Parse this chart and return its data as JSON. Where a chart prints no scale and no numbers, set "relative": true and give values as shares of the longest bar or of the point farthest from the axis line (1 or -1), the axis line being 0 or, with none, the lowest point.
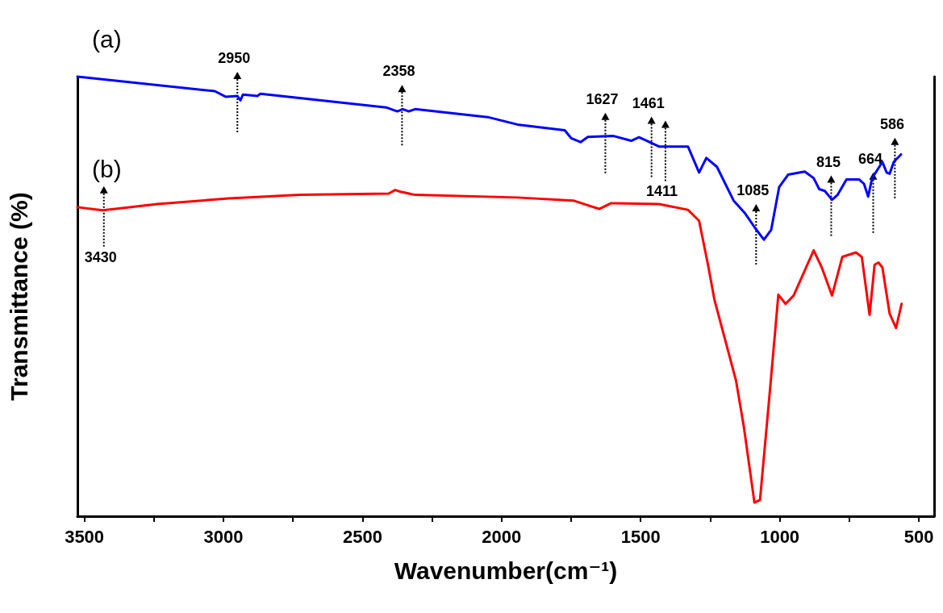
{
  "chart_data": {
    "type": "line",
    "relative": true,
    "xlabel": "Wavenumber(cm⁻¹)",
    "ylabel": "Transmittance (%)",
    "xlim": [
      3525,
      445
    ],
    "xticks": [
      3500,
      {
        "value": 3250,
        "label": null
      },
      3000,
      {
        "value": 2750,
        "label": null
      },
      2500,
      {
        "value": 2250,
        "label": null
      },
      2000,
      {
        "value": 1750,
        "label": null
      },
      1500,
      {
        "value": 1250,
        "label": null
      },
      1000,
      {
        "value": 750,
        "label": null
      },
      500
    ],
    "grid": false,
    "legend": false,
    "marker": "none",
    "line_style": "solid",
    "series": [
      {
        "name": "(a)",
        "color": "#0000ff",
        "x": [
          3525,
          3031,
          2991,
          2950,
          2939,
          2930,
          2878,
          2867,
          2415,
          2375,
          2355,
          2334,
          2311,
          2050,
          1943,
          1773,
          1750,
          1716,
          1690,
          1598,
          1534,
          1506,
          1434,
          1330,
          1290,
          1264,
          1226,
          1166,
          1126,
          1088,
          1057,
          1031,
          1002,
          970,
          910,
          878,
          858,
          838,
          812,
          792,
          760,
          714,
          697,
          682,
          668,
          642,
          631,
          616,
          605,
          590,
          564
        ],
        "values": [
          1.0,
          0.967,
          0.954,
          0.956,
          0.946,
          0.959,
          0.956,
          0.961,
          0.93,
          0.921,
          0.926,
          0.921,
          0.926,
          0.908,
          0.891,
          0.878,
          0.86,
          0.851,
          0.863,
          0.865,
          0.854,
          0.862,
          0.841,
          0.841,
          0.782,
          0.815,
          0.795,
          0.718,
          0.69,
          0.655,
          0.629,
          0.651,
          0.749,
          0.777,
          0.784,
          0.769,
          0.744,
          0.74,
          0.72,
          0.731,
          0.766,
          0.766,
          0.756,
          0.727,
          0.769,
          0.795,
          0.806,
          0.782,
          0.779,
          0.806,
          0.823
        ]
      },
      {
        "name": "(b)",
        "color": "#ff0000",
        "x": [
          3525,
          3434,
          3238,
          2982,
          2723,
          2406,
          2383,
          2363,
          2311,
          1943,
          1742,
          1649,
          1606,
          1434,
          1330,
          1290,
          1258,
          1235,
          1157,
          1129,
          1091,
          1071,
          1034,
          1005,
          979,
          950,
          878,
          849,
          812,
          775,
          726,
          705,
          677,
          659,
          645,
          631,
          605,
          582,
          562
        ],
        "values": [
          0.703,
          0.696,
          0.71,
          0.723,
          0.731,
          0.734,
          0.742,
          0.738,
          0.731,
          0.725,
          0.718,
          0.699,
          0.712,
          0.71,
          0.697,
          0.672,
          0.572,
          0.493,
          0.308,
          0.203,
          0.031,
          0.037,
          0.295,
          0.504,
          0.483,
          0.502,
          0.605,
          0.566,
          0.502,
          0.59,
          0.6,
          0.59,
          0.458,
          0.572,
          0.577,
          0.566,
          0.461,
          0.428,
          0.483
        ]
      }
    ],
    "annotations": [
      {
        "text": "3430",
        "x": 3430,
        "y": 0.696
      },
      {
        "text": "2950",
        "x": 2950,
        "y": 0.956
      },
      {
        "text": "2358",
        "x": 2358,
        "y": 0.926
      },
      {
        "text": "1627",
        "x": 1627,
        "y": 0.863
      },
      {
        "text": "1461",
        "x": 1461,
        "y": 0.854
      },
      {
        "text": "1411",
        "x": 1411,
        "y": 0.845
      },
      {
        "text": "1085",
        "x": 1085,
        "y": 0.655
      },
      {
        "text": "815",
        "x": 815,
        "y": 0.72
      },
      {
        "text": "664",
        "x": 664,
        "y": 0.727
      },
      {
        "text": "586",
        "x": 586,
        "y": 0.806
      }
    ]
  }
}
